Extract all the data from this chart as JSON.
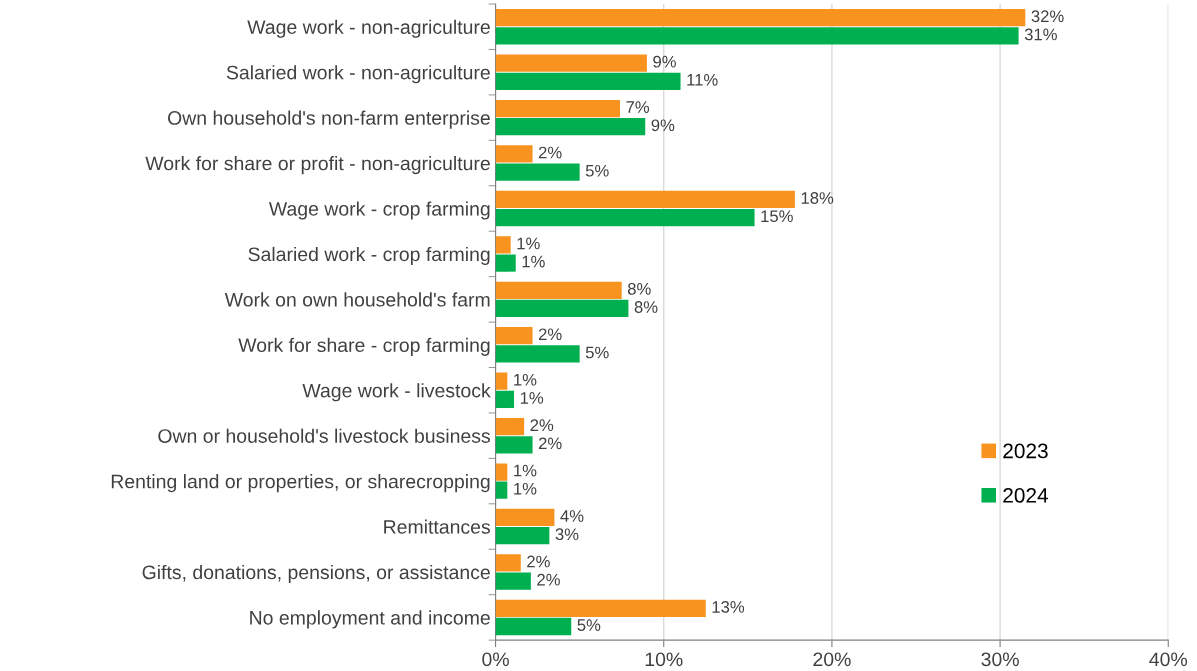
{
  "chart_data": {
    "type": "bar",
    "orientation": "horizontal",
    "categories": [
      "Wage work - non-agriculture",
      "Salaried work - non-agriculture",
      "Own household's non-farm enterprise",
      "Work for share or profit - non-agriculture",
      "Wage work - crop farming",
      "Salaried work - crop farming",
      "Work on own household's farm",
      "Work for share - crop farming",
      "Wage work - livestock",
      "Own or household's livestock business",
      "Renting land or properties, or sharecropping",
      "Remittances",
      "Gifts, donations, pensions, or assistance",
      "No employment and income"
    ],
    "series": [
      {
        "name": "2023",
        "color": "#f7931e",
        "values": [
          31.5,
          9.0,
          7.4,
          2.2,
          17.8,
          0.9,
          7.5,
          2.2,
          0.7,
          1.7,
          0.7,
          3.5,
          1.5,
          12.5
        ],
        "value_labels": [
          "32%",
          "9%",
          "7%",
          "2%",
          "18%",
          "1%",
          "8%",
          "2%",
          "1%",
          "2%",
          "1%",
          "4%",
          "2%",
          "13%"
        ]
      },
      {
        "name": "2024",
        "color": "#00b050",
        "values": [
          31.1,
          11.0,
          8.9,
          5.0,
          15.4,
          1.2,
          7.9,
          5.0,
          1.1,
          2.2,
          0.7,
          3.2,
          2.1,
          4.5
        ],
        "value_labels": [
          "31%",
          "11%",
          "9%",
          "5%",
          "15%",
          "1%",
          "8%",
          "5%",
          "1%",
          "2%",
          "1%",
          "3%",
          "2%",
          "5%"
        ]
      }
    ],
    "xlim": [
      0,
      40
    ],
    "xticks": [
      {
        "value": 0,
        "label": "0%"
      },
      {
        "value": 10,
        "label": "10%"
      },
      {
        "value": 20,
        "label": "20%"
      },
      {
        "value": 30,
        "label": "30%"
      },
      {
        "value": 40,
        "label": "40%"
      }
    ],
    "grid": "x",
    "legend": "bottom right"
  }
}
